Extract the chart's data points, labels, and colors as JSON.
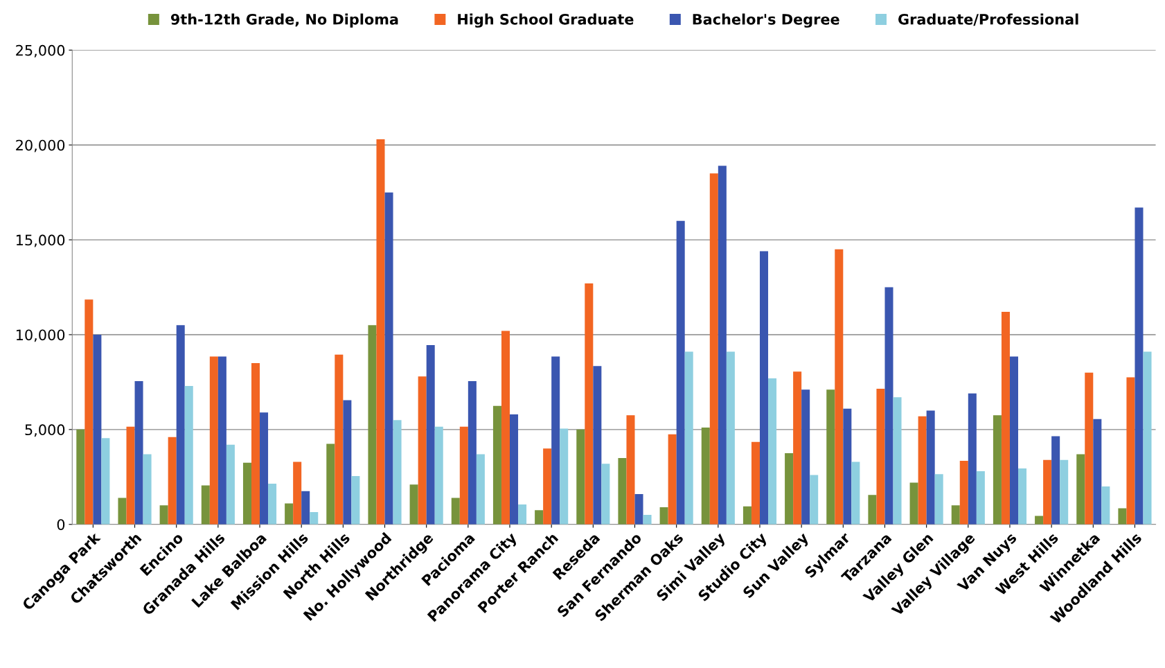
{
  "chart_data": {
    "type": "bar",
    "categories": [
      "Canoga Park",
      "Chatsworth",
      "Encino",
      "Granada Hills",
      "Lake Balboa",
      "Mission Hills",
      "North Hills",
      "No. Hollywood",
      "Northridge",
      "Pacioma",
      "Panorama City",
      "Porter Ranch",
      "Reseda",
      "San Fernando",
      "Sherman Oaks",
      "Simi Valley",
      "Studio City",
      "Sun Valley",
      "Sylmar",
      "Tarzana",
      "Valley Glen",
      "Valley Village",
      "Van Nuys",
      "West Hills",
      "Winnetka",
      "Woodland Hills"
    ],
    "series": [
      {
        "name": "9th-12th Grade, No Diploma",
        "color": "#77933c",
        "values": [
          5000,
          1400,
          1000,
          2050,
          3250,
          1100,
          4250,
          10500,
          2100,
          1400,
          6250,
          750,
          5000,
          3500,
          900,
          5100,
          950,
          3750,
          7100,
          1550,
          2200,
          1000,
          5750,
          450,
          3700,
          850
        ]
      },
      {
        "name": "High School Graduate",
        "color": "#f26522",
        "values": [
          11850,
          5150,
          4600,
          8850,
          8500,
          3300,
          8950,
          20300,
          7800,
          5150,
          10200,
          4000,
          12700,
          5750,
          4750,
          18500,
          4350,
          8050,
          14500,
          7150,
          5700,
          3350,
          11200,
          3400,
          8000,
          7750
        ]
      },
      {
        "name": "Bachelor's Degree",
        "color": "#3a56b0",
        "values": [
          10000,
          7550,
          10500,
          8850,
          5900,
          1750,
          6550,
          17500,
          9450,
          7550,
          5800,
          8850,
          8350,
          1600,
          16000,
          18900,
          14400,
          7100,
          6100,
          12500,
          6000,
          6900,
          8850,
          4650,
          5550,
          16700
        ]
      },
      {
        "name": "Graduate/Professional",
        "color": "#8ecfe0",
        "values": [
          4550,
          3700,
          7300,
          4200,
          2150,
          650,
          2550,
          5500,
          5150,
          3700,
          1050,
          5050,
          3200,
          500,
          9100,
          9100,
          7700,
          2600,
          3300,
          6700,
          2650,
          2800,
          2950,
          3400,
          2000,
          9100
        ]
      }
    ],
    "ylim": [
      0,
      25000
    ],
    "yticks": [
      {
        "value": 0,
        "label": "0"
      },
      {
        "value": 5000,
        "label": "5,000"
      },
      {
        "value": 10000,
        "label": "10,000"
      },
      {
        "value": 15000,
        "label": "15,000"
      },
      {
        "value": 20000,
        "label": "20,000"
      },
      {
        "value": 25000,
        "label": "25,000"
      }
    ],
    "grid": "y",
    "legend": "top"
  }
}
